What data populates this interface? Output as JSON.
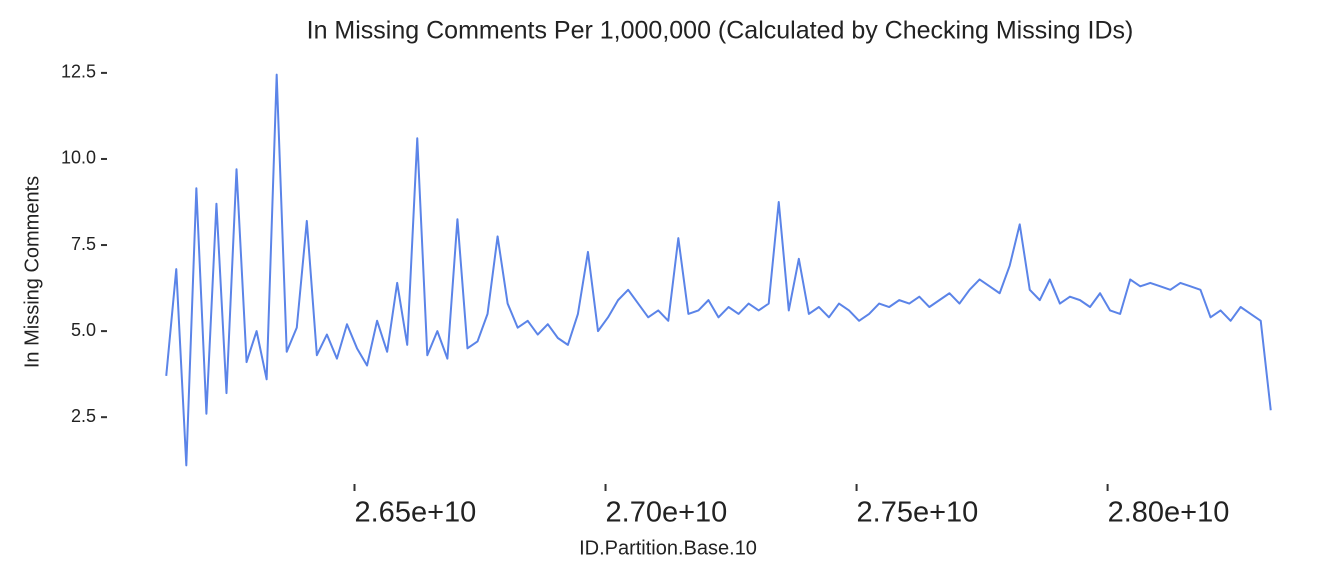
{
  "chart_data": {
    "type": "line",
    "title": "In Missing Comments Per 1,000,000 (Calculated by Checking Missing IDs)",
    "x_label": "ID.Partition.Base.10",
    "y_label": "In Missing Comments",
    "x": [
      26125000000.0,
      26145000000.0,
      26165000000.0,
      26185000000.0,
      26205000000.0,
      26225000000.0,
      26245000000.0,
      26265000000.0,
      26285000000.0,
      26305000000.0,
      26325000000.0,
      26345000000.0,
      26365000000.0,
      26385000000.0,
      26405000000.0,
      26425000000.0,
      26445000000.0,
      26465000000.0,
      26485000000.0,
      26505000000.0,
      26525000000.0,
      26545000000.0,
      26565000000.0,
      26585000000.0,
      26605000000.0,
      26625000000.0,
      26645000000.0,
      26665000000.0,
      26685000000.0,
      26705000000.0,
      26725000000.0,
      26745000000.0,
      26765000000.0,
      26785000000.0,
      26805000000.0,
      26825000000.0,
      26845000000.0,
      26865000000.0,
      26885000000.0,
      26905000000.0,
      26925000000.0,
      26945000000.0,
      26965000000.0,
      26985000000.0,
      27005000000.0,
      27025000000.0,
      27045000000.0,
      27065000000.0,
      27085000000.0,
      27105000000.0,
      27125000000.0,
      27145000000.0,
      27165000000.0,
      27185000000.0,
      27205000000.0,
      27225000000.0,
      27245000000.0,
      27265000000.0,
      27285000000.0,
      27305000000.0,
      27325000000.0,
      27345000000.0,
      27365000000.0,
      27385000000.0,
      27405000000.0,
      27425000000.0,
      27445000000.0,
      27465000000.0,
      27485000000.0,
      27505000000.0,
      27525000000.0,
      27545000000.0,
      27565000000.0,
      27585000000.0,
      27605000000.0,
      27625000000.0,
      27645000000.0,
      27665000000.0,
      27685000000.0,
      27705000000.0,
      27725000000.0,
      27745000000.0,
      27765000000.0,
      27785000000.0,
      27805000000.0,
      27825000000.0,
      27845000000.0,
      27865000000.0,
      27885000000.0,
      27905000000.0,
      27925000000.0,
      27945000000.0,
      27965000000.0,
      27985000000.0,
      28005000000.0,
      28025000000.0,
      28045000000.0,
      28065000000.0,
      28085000000.0,
      28105000000.0,
      28125000000.0,
      28145000000.0,
      28165000000.0,
      28185000000.0,
      28205000000.0,
      28225000000.0,
      28245000000.0,
      28265000000.0,
      28285000000.0,
      28305000000.0,
      28325000000.0
    ],
    "series": [
      {
        "name": "In Missing Comments",
        "color": "#5b84e8",
        "values": [
          3.7,
          6.8,
          1.1,
          9.15,
          2.6,
          8.7,
          3.2,
          9.7,
          4.1,
          5.0,
          3.6,
          12.45,
          4.4,
          5.1,
          8.2,
          4.3,
          4.9,
          4.2,
          5.2,
          4.5,
          4.0,
          5.3,
          4.4,
          6.4,
          4.6,
          10.6,
          4.3,
          5.0,
          4.2,
          8.25,
          4.5,
          4.7,
          5.5,
          7.75,
          5.8,
          5.1,
          5.3,
          4.9,
          5.2,
          4.8,
          4.6,
          5.5,
          7.3,
          5.0,
          5.4,
          5.9,
          6.2,
          5.8,
          5.4,
          5.6,
          5.3,
          7.7,
          5.5,
          5.6,
          5.9,
          5.4,
          5.7,
          5.5,
          5.8,
          5.6,
          5.8,
          8.75,
          5.6,
          7.1,
          5.5,
          5.7,
          5.4,
          5.8,
          5.6,
          5.3,
          5.5,
          5.8,
          5.7,
          5.9,
          5.8,
          6.0,
          5.7,
          5.9,
          6.1,
          5.8,
          6.2,
          6.5,
          6.3,
          6.1,
          6.9,
          8.1,
          6.2,
          5.9,
          6.5,
          5.8,
          6.0,
          5.9,
          5.7,
          6.1,
          5.6,
          5.5,
          6.5,
          6.3,
          6.4,
          6.3,
          6.2,
          6.4,
          6.3,
          6.2,
          5.4,
          5.6,
          5.3,
          5.7,
          5.5,
          5.3,
          2.7
        ]
      }
    ],
    "xlim": [
      26013000000.0,
      28441000000.0
    ],
    "xticks": [
      {
        "value": 26500000000,
        "label": "2.65e+10"
      },
      {
        "value": 27000000000,
        "label": "2.70e+10"
      },
      {
        "value": 27500000000,
        "label": "2.75e+10"
      },
      {
        "value": 28000000000,
        "label": "2.80e+10"
      }
    ],
    "ylim": [
      0.53,
      13.02
    ],
    "yticks": [
      2.5,
      {
        "value": 5,
        "label": "5.0"
      },
      7.5,
      {
        "value": 10,
        "label": "10.0"
      },
      12.5
    ],
    "grid": false
  }
}
